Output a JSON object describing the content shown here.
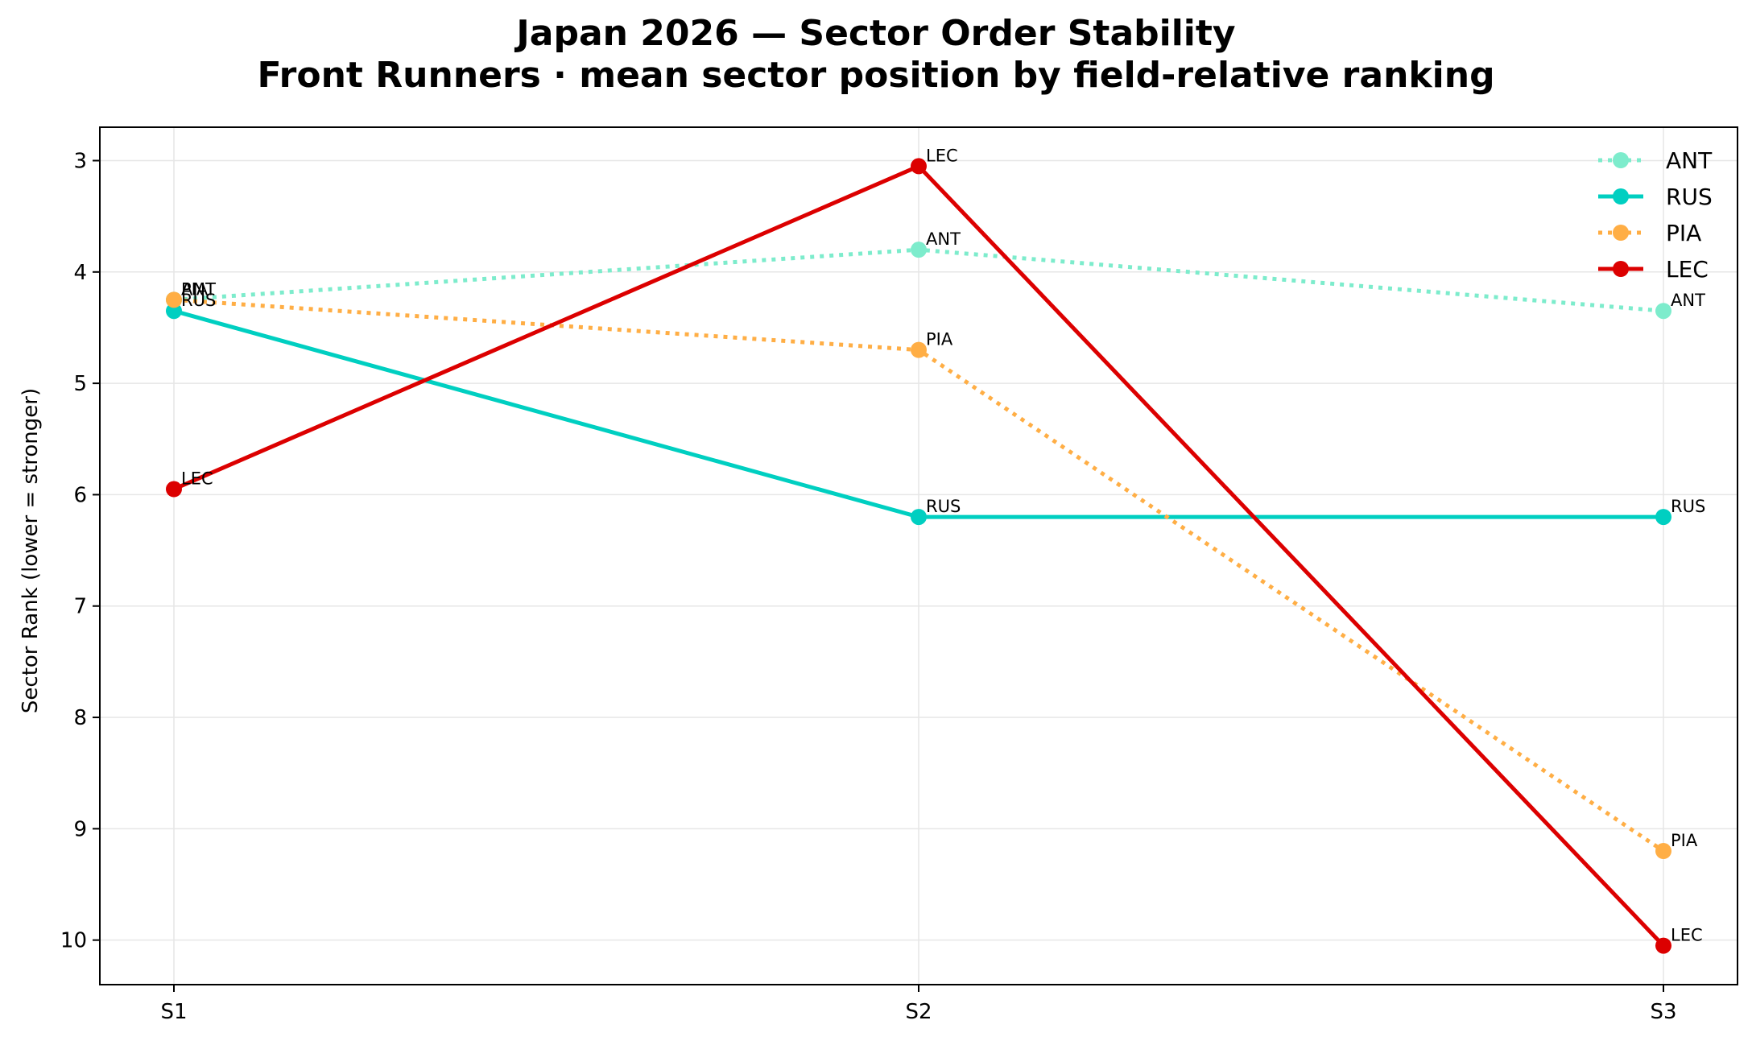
{
  "chart_data": {
    "type": "line",
    "title": "Japan 2026 — Sector Order Stability",
    "subtitle": "Front Runners · mean sector position by field-relative ranking",
    "xlabel": "",
    "ylabel": "Sector Rank (lower = stronger)",
    "categories": [
      "S1",
      "S2",
      "S3"
    ],
    "y_ticks": [
      3,
      4,
      5,
      6,
      7,
      8,
      9,
      10
    ],
    "ylim": [
      10.4,
      2.7
    ],
    "y_inverted": true,
    "grid": true,
    "legend_position": "top-right",
    "series": [
      {
        "name": "ANT",
        "values": [
          4.25,
          3.8,
          4.35
        ],
        "color": "#7deccc",
        "style": "dotted"
      },
      {
        "name": "RUS",
        "values": [
          4.35,
          6.2,
          6.2
        ],
        "color": "#00cfc1",
        "style": "solid"
      },
      {
        "name": "PIA",
        "values": [
          4.25,
          4.7,
          9.2
        ],
        "color": "#ffae45",
        "style": "dotted"
      },
      {
        "name": "LEC",
        "values": [
          5.95,
          3.05,
          10.05
        ],
        "color": "#dc0000",
        "style": "solid"
      }
    ]
  }
}
